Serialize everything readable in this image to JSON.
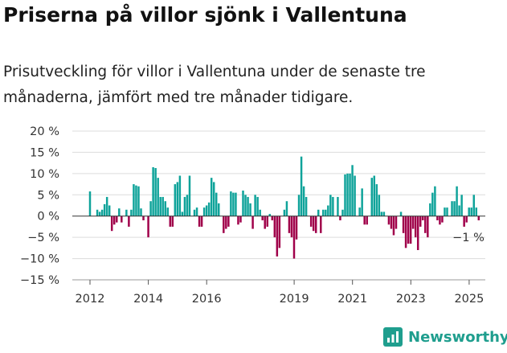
{
  "header": {
    "title": "Priserna på villor sjönk i Vallentuna",
    "subtitle": "Prisutveckling för villor i Vallentuna under de senaste tre månaderna, jämfört med tre månader tidigare."
  },
  "brand": {
    "name": "Newsworthy"
  },
  "colors": {
    "positive": "#0fa39a",
    "negative": "#a0004a",
    "grid": "#dcdcdc",
    "axis": "#555555"
  },
  "chart_data": {
    "type": "bar",
    "title": "Priserna på villor sjönk i Vallentuna",
    "xlabel": "",
    "ylabel": "",
    "ylim": [
      -15,
      20
    ],
    "y_ticks": [
      20,
      15,
      10,
      5,
      0,
      -5,
      -10,
      -15
    ],
    "y_tick_labels": [
      "20 %",
      "15 %",
      "10 %",
      "5 %",
      "0 %",
      "−5 %",
      "−10 %",
      "−15 %"
    ],
    "x_ticks": [
      2012,
      2014,
      2016,
      2019,
      2021,
      2023,
      2025
    ],
    "x_tick_labels": [
      "2012",
      "2014",
      "2016",
      "2019",
      "2021",
      "2023",
      "2025"
    ],
    "x_start": 2012.0,
    "x_step": 0.0833,
    "grid": "horizontal",
    "annotation": {
      "text": "−1 %",
      "value": -1
    },
    "values": [
      5.8,
      0,
      0,
      1.5,
      1.0,
      1.5,
      2.8,
      4.5,
      2.5,
      -3.5,
      -2.0,
      -1.5,
      1.8,
      -1.5,
      0,
      1.5,
      -2.5,
      1.5,
      7.5,
      7.2,
      7.0,
      1.8,
      -1.0,
      0,
      -5.0,
      3.5,
      11.5,
      11.3,
      9.0,
      4.5,
      4.5,
      3.5,
      2.0,
      -2.5,
      -2.5,
      7.5,
      8.0,
      9.5,
      1.0,
      4.5,
      5.0,
      9.5,
      0,
      1.5,
      2.0,
      -2.5,
      -2.5,
      2.0,
      2.5,
      3.2,
      9.0,
      8.0,
      5.5,
      3.0,
      0,
      -4.0,
      -3.0,
      -2.5,
      5.8,
      5.5,
      5.5,
      -2.0,
      -1.5,
      6.0,
      5.0,
      4.5,
      3.0,
      -3.0,
      5.0,
      4.5,
      1.5,
      -1.0,
      -3.0,
      -2.5,
      0.5,
      -1.0,
      -5.0,
      -9.5,
      -7.5,
      0,
      1.5,
      3.5,
      -4.0,
      -5.0,
      -10.0,
      -5.5,
      5.0,
      14.0,
      7.0,
      4.5,
      0,
      -2.5,
      -3.5,
      -4.0,
      1.5,
      -4.0,
      1.5,
      1.5,
      2.5,
      5.0,
      4.5,
      0,
      4.5,
      -1.0,
      1.5,
      9.8,
      10.0,
      10.0,
      12.0,
      9.5,
      0,
      2.0,
      6.5,
      -2.0,
      -2.0,
      0,
      9.0,
      9.5,
      7.5,
      5.0,
      1.0,
      1.0,
      0,
      -2.0,
      -3.0,
      -4.5,
      -3.0,
      0,
      1.0,
      -4.0,
      -7.5,
      -6.5,
      -6.5,
      -3.0,
      -5.0,
      -8.0,
      -2.5,
      -1.0,
      -4.0,
      -5.0,
      3.0,
      5.5,
      7.0,
      -1.0,
      -2.0,
      -1.5,
      2.0,
      2.0,
      0,
      3.5,
      3.5,
      7.0,
      2.5,
      5.0,
      -2.5,
      -1.5,
      2.0,
      2.0,
      5.0,
      2.0,
      -1.0
    ]
  }
}
